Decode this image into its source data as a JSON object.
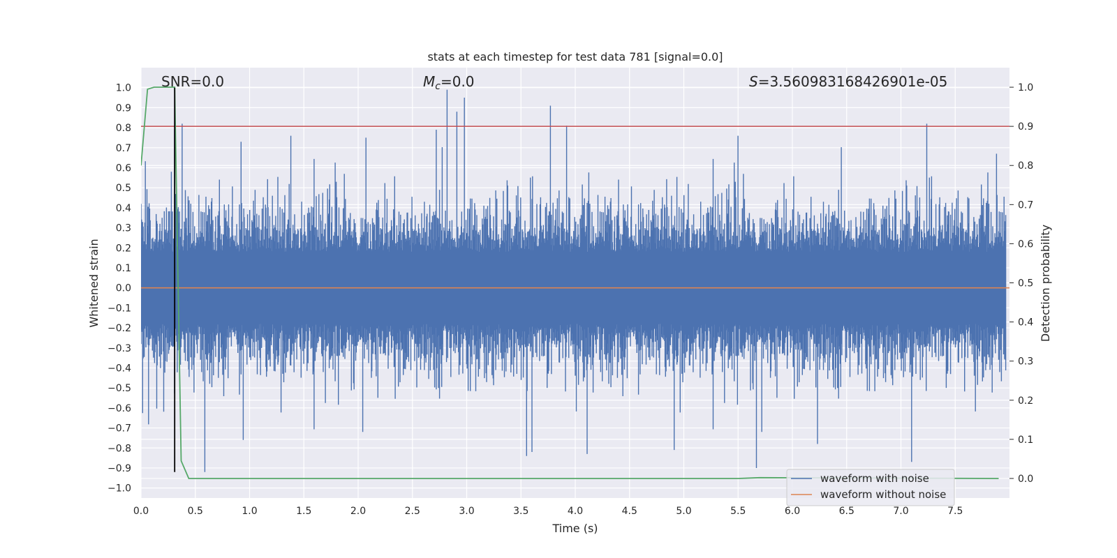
{
  "chart_data": {
    "type": "line",
    "title": "stats at each timestep for test data 781 [signal=0.0]",
    "xlabel": "Time (s)",
    "ylabel": "Whitened strain",
    "ylabel_right": "Detection probability",
    "xlim": [
      0.0,
      8.0
    ],
    "ylim": [
      -1.05,
      1.1
    ],
    "ylim_right": [
      -0.05,
      1.05
    ],
    "x_ticks": [
      0.0,
      0.5,
      1.0,
      1.5,
      2.0,
      2.5,
      3.0,
      3.5,
      4.0,
      4.5,
      5.0,
      5.5,
      6.0,
      6.5,
      7.0,
      7.5
    ],
    "x_tick_labels": [
      "0.0",
      "0.5",
      "1.0",
      "1.5",
      "2.0",
      "2.5",
      "3.0",
      "3.5",
      "4.0",
      "4.5",
      "5.0",
      "5.5",
      "6.0",
      "6.5",
      "7.0",
      "7.5"
    ],
    "y_ticks": [
      1.0,
      0.9,
      0.8,
      0.7,
      0.6,
      0.5,
      0.4,
      0.3,
      0.2,
      0.1,
      0.0,
      -0.1,
      -0.2,
      -0.3,
      -0.4,
      -0.5,
      -0.6,
      -0.7,
      -0.8,
      -0.9,
      -1.0
    ],
    "y_tick_labels": [
      "1.0",
      "0.9",
      "0.8",
      "0.7",
      "0.6",
      "0.5",
      "0.4",
      "0.3",
      "0.2",
      "0.1",
      "0.0",
      "−0.1",
      "−0.2",
      "−0.3",
      "−0.4",
      "−0.5",
      "−0.6",
      "−0.7",
      "−0.8",
      "−0.9",
      "−1.0"
    ],
    "y_right_ticks": [
      1.0,
      0.9,
      0.8,
      0.7,
      0.6,
      0.5,
      0.4,
      0.3,
      0.2,
      0.1,
      0.0
    ],
    "y_right_tick_labels": [
      "1.0",
      "0.9",
      "0.8",
      "0.7",
      "0.6",
      "0.5",
      "0.4",
      "0.3",
      "0.2",
      "0.1",
      "0.0"
    ],
    "grid": true,
    "legend_placement": "lower-right",
    "annotations": {
      "snr": "SNR=0.0",
      "mc_symbol": "M",
      "mc_sub": "c",
      "mc_value": "=0.0",
      "s_symbol": "S",
      "s_value": "=3.560983168426901e-05"
    },
    "series": [
      {
        "name": "waveform with noise",
        "color": "#4c72b0",
        "kind": "noise",
        "spread_typical": 0.3,
        "peaks": [
          {
            "x": 0.28,
            "y": 0.58
          },
          {
            "x": 0.38,
            "y": 0.82
          },
          {
            "x": 0.59,
            "y": -0.92
          },
          {
            "x": 0.92,
            "y": 0.73
          },
          {
            "x": 0.94,
            "y": -0.76
          },
          {
            "x": 1.38,
            "y": 0.76
          },
          {
            "x": 2.07,
            "y": 0.75
          },
          {
            "x": 2.72,
            "y": 0.79
          },
          {
            "x": 2.82,
            "y": 0.99
          },
          {
            "x": 2.91,
            "y": 0.88
          },
          {
            "x": 2.98,
            "y": 0.95
          },
          {
            "x": 3.55,
            "y": -0.84
          },
          {
            "x": 3.6,
            "y": -0.82
          },
          {
            "x": 3.77,
            "y": 0.91
          },
          {
            "x": 3.92,
            "y": 0.81
          },
          {
            "x": 4.11,
            "y": -0.83
          },
          {
            "x": 4.91,
            "y": -0.81
          },
          {
            "x": 5.5,
            "y": 0.76
          },
          {
            "x": 5.67,
            "y": -0.9
          },
          {
            "x": 6.23,
            "y": -0.78
          },
          {
            "x": 7.1,
            "y": -0.87
          },
          {
            "x": 7.24,
            "y": 0.82
          },
          {
            "x": 7.88,
            "y": 0.67
          }
        ]
      },
      {
        "name": "waveform without noise",
        "color": "#dd8452",
        "x": [
          0.0,
          8.0
        ],
        "y": [
          0.0,
          0.0
        ]
      },
      {
        "name": "",
        "color": "#55a868",
        "axis": "right",
        "x": [
          0.0,
          0.06,
          0.12,
          0.18,
          0.24,
          0.31,
          0.37,
          0.44,
          0.5,
          5.5,
          5.7,
          7.9
        ],
        "y": [
          0.8,
          0.995,
          1.0,
          1.0,
          1.0,
          1.0,
          0.045,
          0.0,
          0.0,
          0.0,
          0.002,
          0.0
        ]
      }
    ],
    "threshold_line": {
      "color": "#c44e52",
      "axis": "right",
      "y": 0.9
    },
    "marker_line": {
      "color": "#000000",
      "x": 0.31,
      "y": [
        -0.92,
        1.0
      ]
    }
  }
}
